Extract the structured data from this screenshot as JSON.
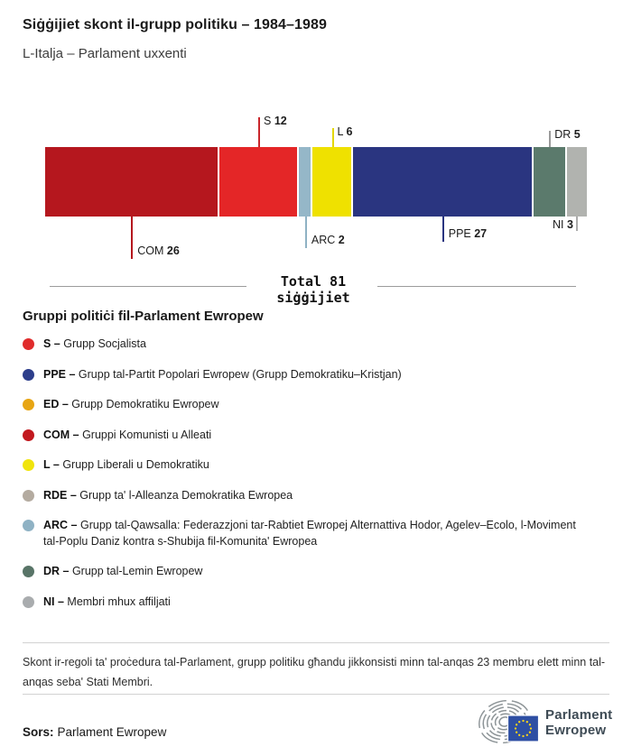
{
  "title": "Siġġijiet skont il-grupp politiku – 1984–1989",
  "subtitle": "L-Italja – Parlament uxxenti",
  "chart_data": {
    "type": "bar",
    "orientation": "horizontal-stacked",
    "title": "Siġġijiet skont il-grupp politiku – 1984–1989",
    "total": 81,
    "total_label_line1": "Total 81",
    "total_label_line2": "siġġijiet",
    "segments": [
      {
        "name": "COM",
        "value": 26,
        "color": "#b5171e",
        "tick_color": "#b5171e",
        "callout": "below",
        "tick_len": 47,
        "label_side": "right"
      },
      {
        "name": "S",
        "value": 12,
        "color": "#e42627",
        "tick_color": "#c9262b",
        "callout": "above",
        "tick_len": 33,
        "label_side": "right"
      },
      {
        "name": "ARC",
        "value": 2,
        "color": "#95b7c8",
        "tick_color": "#8fb2c4",
        "callout": "below",
        "tick_len": 35,
        "label_side": "right"
      },
      {
        "name": "L",
        "value": 6,
        "color": "#efe100",
        "tick_color": "#e3d700",
        "callout": "above",
        "tick_len": 21,
        "label_side": "right"
      },
      {
        "name": "PPE",
        "value": 27,
        "color": "#2a3580",
        "tick_color": "#2a3580",
        "callout": "below",
        "tick_len": 28,
        "label_side": "right"
      },
      {
        "name": "DR",
        "value": 5,
        "color": "#5b7a6c",
        "tick_color": "#9b9b9b",
        "callout": "above",
        "tick_len": 18,
        "label_side": "right"
      },
      {
        "name": "NI",
        "value": 3,
        "color": "#b1b3af",
        "tick_color": "#ababab",
        "callout": "below",
        "tick_len": 16,
        "label_side": "left"
      }
    ]
  },
  "legend": {
    "heading": "Gruppi politiċi fil-Parlament Ewropew",
    "items": [
      {
        "code": "S –",
        "label": "Grupp Socjalista",
        "color": "#e02c2c"
      },
      {
        "code": "PPE –",
        "label": "Grupp tal-Partit Popolari Ewropew (Grupp Demokratiku–Kristjan)",
        "color": "#2d3e8b"
      },
      {
        "code": "ED –",
        "label": "Grupp Demokratiku Ewropew",
        "color": "#e7a513"
      },
      {
        "code": "COM –",
        "label": "Gruppi Komunisti u Alleati",
        "color": "#c2191f"
      },
      {
        "code": "L –",
        "label": "Grupp Liberali u Demokratiku",
        "color": "#f0e40c"
      },
      {
        "code": "RDE –",
        "label": "Grupp ta' l-Alleanza Demokratika Ewropea",
        "color": "#b4aba0"
      },
      {
        "code": "ARC –",
        "label": "Grupp tal-Qawsalla: Federazzjoni tar-Rabtiet Ewropej Alternattiva Hodor, Agelev–Ecolo, l-Moviment tal-Poplu Daniz kontra s-Shubija fil-Komunita' Ewropea",
        "color": "#8fb2c4"
      },
      {
        "code": "DR –",
        "label": "Grupp tal-Lemin Ewropew",
        "color": "#587467"
      },
      {
        "code": "NI –",
        "label": "Membri mhux affiljati",
        "color": "#a9acae"
      }
    ]
  },
  "footnote": "Skont ir-regoli ta' proċedura tal-Parlament, grupp politiku għandu jikkonsisti minn tal-anqas 23 membru elett minn tal-anqas seba' Stati Membri.",
  "source": {
    "label": "Sors:",
    "value": "Parlament Ewropew"
  },
  "logo": {
    "line1": "Parlament",
    "line2": "Ewropew",
    "flag_color": "#2e4fa3",
    "star_color": "#ffd617",
    "arc_color": "#8e9598"
  }
}
